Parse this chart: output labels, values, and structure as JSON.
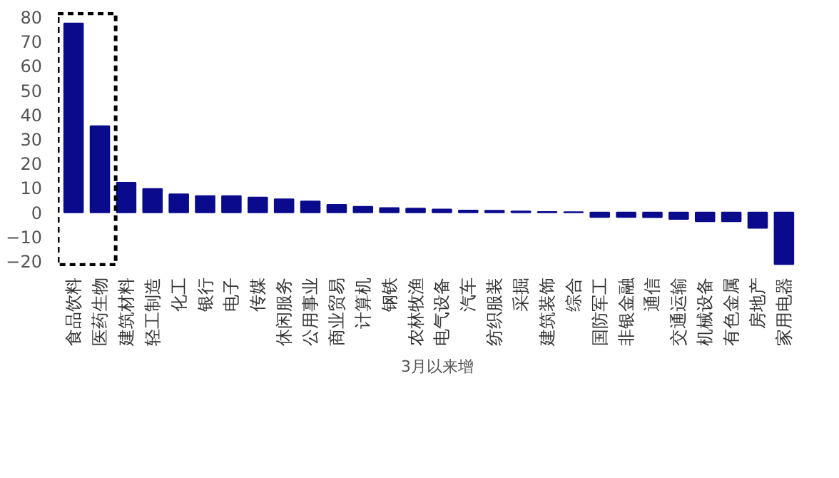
{
  "chart_data": {
    "type": "bar",
    "categories": [
      "食品饮料",
      "医药生物",
      "建筑材料",
      "轻工制造",
      "化工",
      "银行",
      "电子",
      "传媒",
      "休闲服务",
      "公用事业",
      "商业贸易",
      "计算机",
      "钢铁",
      "农林牧渔",
      "电气设备",
      "汽车",
      "纺织服装",
      "采掘",
      "建筑装饰",
      "综合",
      "国防军工",
      "非银金融",
      "通信",
      "交通运输",
      "机械设备",
      "有色金属",
      "房地产",
      "家用电器"
    ],
    "series": [
      {
        "name": "3月以来增",
        "color": "#0a0a8c",
        "values": [
          77.4,
          35.3,
          12.2,
          9.6,
          7.4,
          6.7,
          6.7,
          6.1,
          5.4,
          4.5,
          3.1,
          2.3,
          1.8,
          1.6,
          1.2,
          0.8,
          0.7,
          0.4,
          0.2,
          0.1,
          -1.9,
          -1.9,
          -2.0,
          -2.7,
          -3.7,
          -3.7,
          -6.4,
          -21.2
        ]
      }
    ],
    "ylim": [
      -22,
      82
    ],
    "yticks": [
      -20,
      -10,
      0,
      10,
      20,
      30,
      40,
      50,
      60,
      70,
      80
    ],
    "grid": false,
    "legend": "bottom"
  }
}
